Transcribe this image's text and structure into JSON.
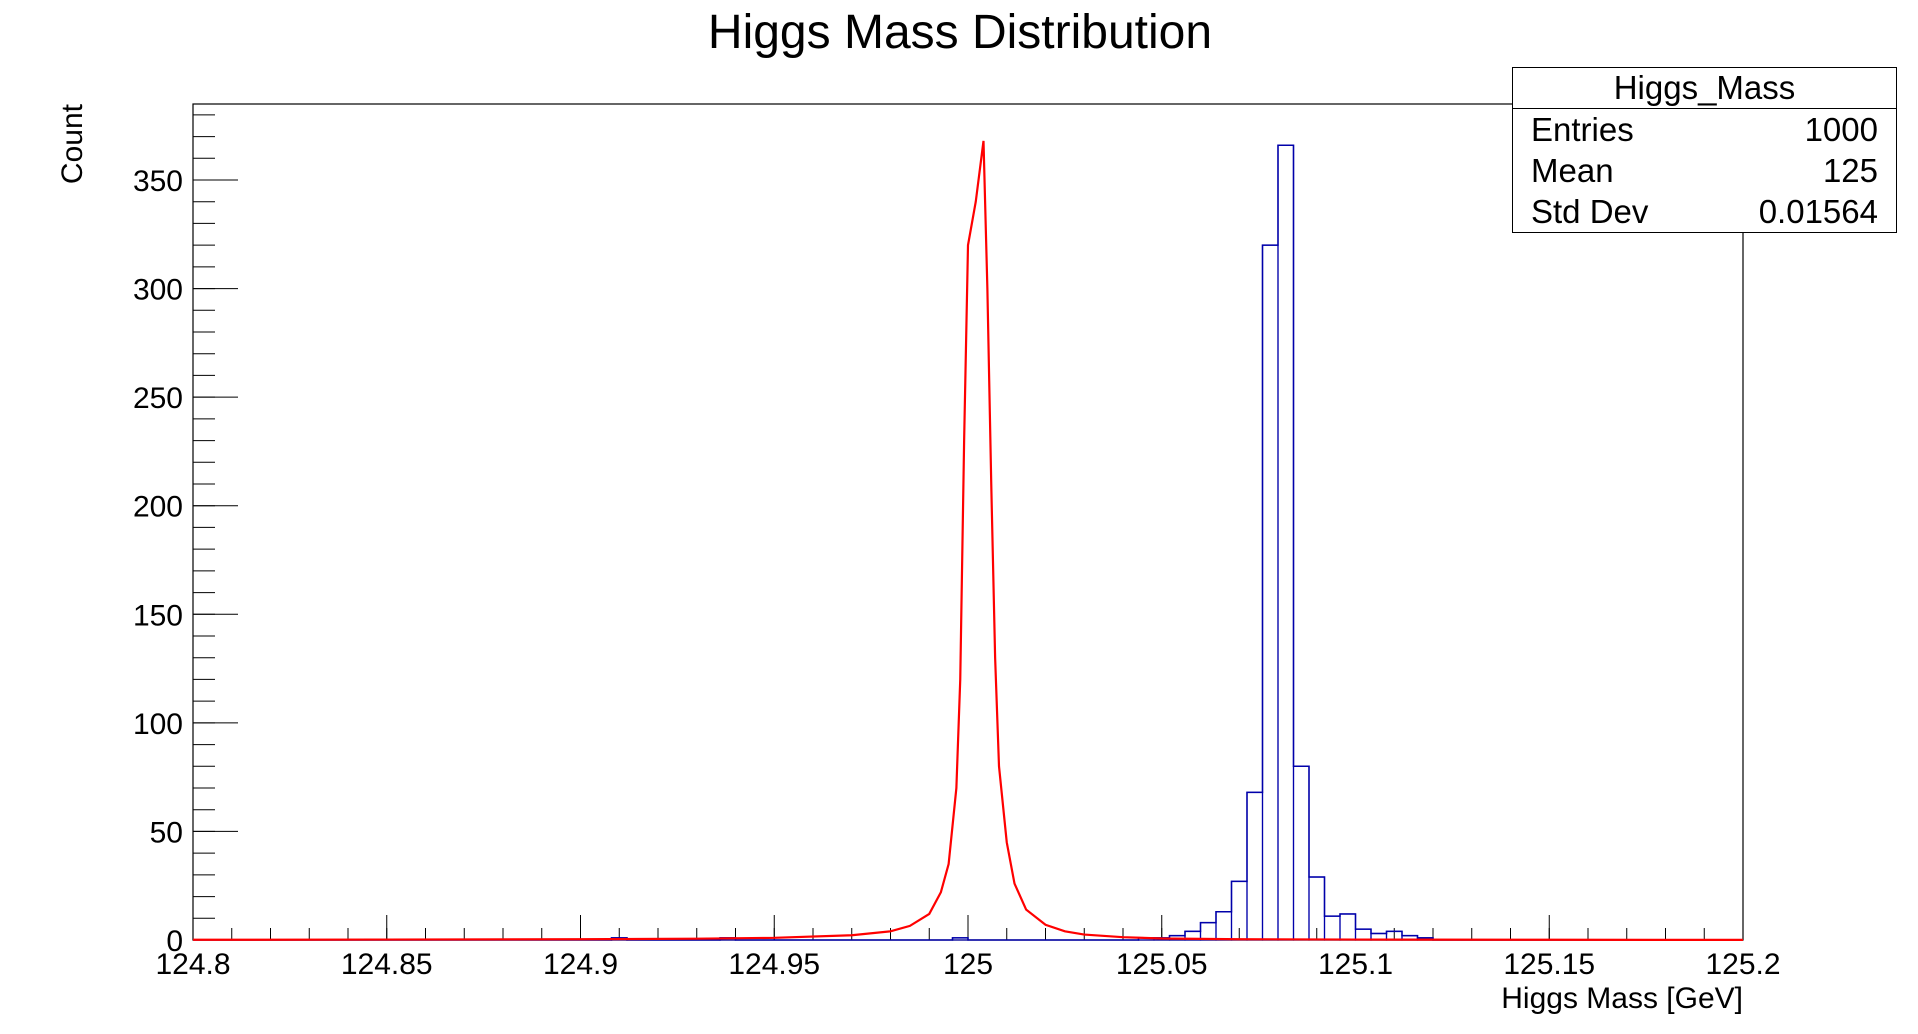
{
  "chart_data": {
    "type": "histogram",
    "title": "Higgs Mass Distribution",
    "xlabel": "Higgs Mass [GeV]",
    "ylabel": "Count",
    "xlim": [
      124.8,
      125.2
    ],
    "ylim": [
      0,
      385
    ],
    "x_ticks": [
      {
        "value": 124.8,
        "label": "124.8"
      },
      {
        "value": 124.85,
        "label": "124.85"
      },
      {
        "value": 124.9,
        "label": "124.9"
      },
      {
        "value": 124.95,
        "label": "124.95"
      },
      {
        "value": 125.0,
        "label": "125"
      },
      {
        "value": 125.05,
        "label": "125.05"
      },
      {
        "value": 125.1,
        "label": "125.1"
      },
      {
        "value": 125.15,
        "label": "125.15"
      },
      {
        "value": 125.2,
        "label": "125.2"
      }
    ],
    "y_ticks": [
      {
        "value": 0,
        "label": "0"
      },
      {
        "value": 50,
        "label": "50"
      },
      {
        "value": 100,
        "label": "100"
      },
      {
        "value": 150,
        "label": "150"
      },
      {
        "value": 200,
        "label": "200"
      },
      {
        "value": 250,
        "label": "250"
      },
      {
        "value": 300,
        "label": "300"
      },
      {
        "value": 350,
        "label": "350"
      }
    ],
    "bins": {
      "low": 124.8,
      "width": 0.004,
      "counts": [
        0,
        0,
        0,
        0,
        0,
        0,
        0,
        0,
        0,
        0,
        0,
        0,
        0,
        0,
        0,
        0,
        0,
        0,
        0,
        0,
        0,
        0,
        0,
        0,
        0,
        0,
        0,
        1,
        0,
        0,
        0,
        0,
        0,
        0,
        1,
        0,
        0,
        0,
        0,
        0,
        0,
        0,
        0,
        0,
        0,
        0,
        0,
        0,
        0,
        1,
        0,
        0,
        0,
        0,
        0,
        0,
        0,
        0,
        0,
        0,
        0,
        1,
        1,
        2,
        4,
        8,
        13,
        27,
        68,
        320,
        366,
        80,
        29,
        11,
        12,
        5,
        3,
        4,
        2,
        1,
        0,
        0,
        0,
        0,
        0,
        0,
        0,
        0,
        0,
        0,
        0,
        0,
        0,
        0,
        0,
        0,
        0,
        0,
        0,
        0
      ]
    },
    "fit": {
      "color": "#ff0000",
      "points": [
        [
          124.8,
          0.1
        ],
        [
          124.85,
          0.2
        ],
        [
          124.9,
          0.35
        ],
        [
          124.93,
          0.6
        ],
        [
          124.95,
          1
        ],
        [
          124.97,
          2.2
        ],
        [
          124.98,
          4
        ],
        [
          124.985,
          6.5
        ],
        [
          124.99,
          12
        ],
        [
          124.993,
          22
        ],
        [
          124.995,
          35
        ],
        [
          124.997,
          70
        ],
        [
          124.998,
          120
        ],
        [
          124.999,
          230
        ],
        [
          125.0,
          320
        ],
        [
          125.002,
          340
        ],
        [
          125.004,
          368
        ],
        [
          125.005,
          300
        ],
        [
          125.006,
          210
        ],
        [
          125.007,
          130
        ],
        [
          125.008,
          80
        ],
        [
          125.01,
          45
        ],
        [
          125.012,
          26
        ],
        [
          125.015,
          14
        ],
        [
          125.02,
          7
        ],
        [
          125.025,
          4
        ],
        [
          125.03,
          2.5
        ],
        [
          125.04,
          1.3
        ],
        [
          125.05,
          0.7
        ],
        [
          125.07,
          0.35
        ],
        [
          125.1,
          0.2
        ],
        [
          125.15,
          0.1
        ],
        [
          125.2,
          0.05
        ]
      ]
    },
    "histogram_color": "#0000aa"
  },
  "stats": {
    "title": "Higgs_Mass",
    "rows": [
      {
        "label": "Entries",
        "value": "1000"
      },
      {
        "label": "Mean",
        "value": "125"
      },
      {
        "label": "Std Dev",
        "value": "0.01564"
      }
    ]
  }
}
